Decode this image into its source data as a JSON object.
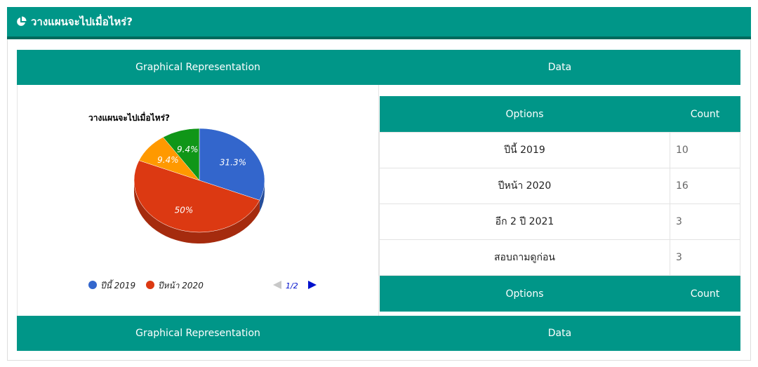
{
  "header": {
    "title": "วางแผนจะไปเมื่อไหร่?",
    "icon": "pie-chart-icon"
  },
  "columns": {
    "graph": "Graphical Representation",
    "data": "Data"
  },
  "table": {
    "headers": {
      "options": "Options",
      "count": "Count"
    },
    "rows": [
      {
        "option": "ปีนี้ 2019",
        "count": "10"
      },
      {
        "option": "ปีหน้า 2020",
        "count": "16"
      },
      {
        "option": "อีก 2 ปี 2021",
        "count": "3"
      },
      {
        "option": "สอบถามดูก่อน",
        "count": "3"
      }
    ]
  },
  "legend": {
    "items": [
      "ปีนี้ 2019",
      "ปีหน้า 2020"
    ],
    "page": "1/2"
  },
  "chart_data": {
    "type": "pie",
    "title": "วางแผนจะไปเมื่อไหร่?",
    "categories": [
      "ปีนี้ 2019",
      "ปีหน้า 2020",
      "อีก 2 ปี 2021",
      "สอบถามดูก่อน"
    ],
    "values": [
      10,
      16,
      3,
      3
    ],
    "labels": [
      "31.3%",
      "50%",
      "9.4%",
      "9.4%"
    ],
    "colors": [
      "#3366cc",
      "#dc3912",
      "#ff9900",
      "#109618"
    ],
    "side_colors": [
      "#264d99",
      "#a52b0e",
      "#bf7200",
      "#0c7012"
    ],
    "is3D": true,
    "legend_position": "bottom"
  }
}
